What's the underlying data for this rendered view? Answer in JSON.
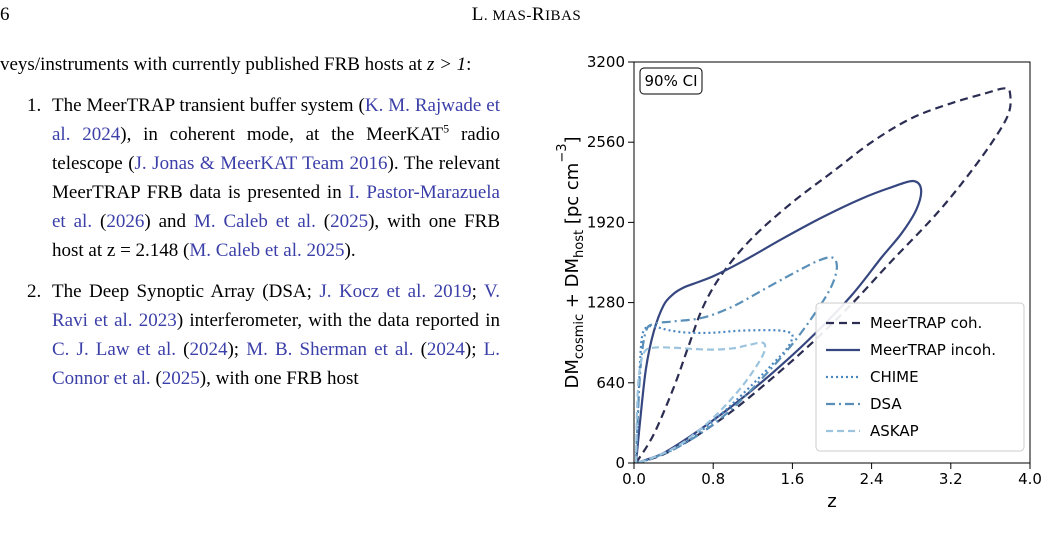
{
  "header": {
    "page_number": "6",
    "running_head_initial": "L",
    "running_head_small": "L. M",
    "running_head_rest": "AS-",
    "running_head_initial2": "R",
    "running_head_small2": "IBAS"
  },
  "text": {
    "intro": "veys/instruments with currently published FRB hosts at z > 1:",
    "items": [
      {
        "num": "1.",
        "parts": [
          {
            "t": "The MeerTRAP transient buffer system ("
          },
          {
            "t": "K. M. Rajwade et al. 2024",
            "cite": true
          },
          {
            "t": "), in coherent mode, at the MeerKAT"
          },
          {
            "t": "5",
            "sup": true
          },
          {
            "t": " radio telescope ("
          },
          {
            "t": "J. Jonas & MeerKAT Team 2016",
            "cite": true
          },
          {
            "t": "). The relevant MeerTRAP FRB data is presented in "
          },
          {
            "t": "I. Pastor-Marazuela et al.",
            "cite": true
          },
          {
            "t": " ("
          },
          {
            "t": "2026",
            "cite": true
          },
          {
            "t": ") and "
          },
          {
            "t": "M. Caleb et al.",
            "cite": true
          },
          {
            "t": " ("
          },
          {
            "t": "2025",
            "cite": true
          },
          {
            "t": "), with one FRB host at z = 2.148 ("
          },
          {
            "t": "M. Caleb et al. 2025",
            "cite": true
          },
          {
            "t": ")."
          }
        ]
      },
      {
        "num": "2.",
        "parts": [
          {
            "t": "The Deep Synoptic Array (DSA; "
          },
          {
            "t": "J. Kocz et al. 2019",
            "cite": true
          },
          {
            "t": "; "
          },
          {
            "t": "V. Ravi et al. 2023",
            "cite": true
          },
          {
            "t": ") interferometer, with the data reported in "
          },
          {
            "t": "C. J. Law et al.",
            "cite": true
          },
          {
            "t": " ("
          },
          {
            "t": "2024",
            "cite": true
          },
          {
            "t": "); "
          },
          {
            "t": "M. B. Sherman et al.",
            "cite": true
          },
          {
            "t": " ("
          },
          {
            "t": "2024",
            "cite": true
          },
          {
            "t": "); "
          },
          {
            "t": "L. Connor et al.",
            "cite": true
          },
          {
            "t": " ("
          },
          {
            "t": "2025",
            "cite": true
          },
          {
            "t": "), with one FRB host"
          }
        ]
      }
    ]
  },
  "chart_data": {
    "type": "line",
    "title": "",
    "annotation": "90% CI",
    "xlabel": "z",
    "ylabel_parts": [
      "DM",
      "cosmic",
      " + DM",
      "host",
      " [pc cm",
      "−3",
      "]"
    ],
    "xlim": [
      0.0,
      4.0
    ],
    "ylim": [
      0,
      3200
    ],
    "xticks": [
      "0.0",
      "0.8",
      "1.6",
      "2.4",
      "3.2",
      "4.0"
    ],
    "yticks": [
      "0",
      "640",
      "1280",
      "1920",
      "2560",
      "3200"
    ],
    "legend_position": "lower-right",
    "series": [
      {
        "name": "MeerTRAP coh.",
        "color": "#2b2d52",
        "dash": "8,5",
        "width": 2.2,
        "points": [
          [
            0.02,
            0
          ],
          [
            0.2,
            230
          ],
          [
            0.4,
            600
          ],
          [
            0.55,
            930
          ],
          [
            0.7,
            1250
          ],
          [
            0.9,
            1520
          ],
          [
            1.2,
            1800
          ],
          [
            1.6,
            2080
          ],
          [
            2.0,
            2320
          ],
          [
            2.4,
            2560
          ],
          [
            2.8,
            2750
          ],
          [
            3.2,
            2870
          ],
          [
            3.55,
            2950
          ],
          [
            3.75,
            2990
          ],
          [
            3.8,
            2940
          ],
          [
            3.78,
            2780
          ],
          [
            3.6,
            2540
          ],
          [
            3.3,
            2220
          ],
          [
            3.0,
            1940
          ],
          [
            2.6,
            1610
          ],
          [
            2.2,
            1270
          ],
          [
            1.8,
            960
          ],
          [
            1.4,
            680
          ],
          [
            1.0,
            420
          ],
          [
            0.6,
            200
          ],
          [
            0.3,
            70
          ],
          [
            0.1,
            15
          ],
          [
            0.02,
            0
          ]
        ]
      },
      {
        "name": "MeerTRAP incoh.",
        "color": "#36477f",
        "dash": "",
        "width": 2.2,
        "points": [
          [
            0.02,
            0
          ],
          [
            0.06,
            320
          ],
          [
            0.12,
            750
          ],
          [
            0.2,
            1050
          ],
          [
            0.3,
            1260
          ],
          [
            0.4,
            1350
          ],
          [
            0.5,
            1400
          ],
          [
            0.6,
            1430
          ],
          [
            0.8,
            1490
          ],
          [
            1.1,
            1610
          ],
          [
            1.5,
            1790
          ],
          [
            1.9,
            1960
          ],
          [
            2.3,
            2110
          ],
          [
            2.6,
            2200
          ],
          [
            2.82,
            2250
          ],
          [
            2.9,
            2180
          ],
          [
            2.85,
            2020
          ],
          [
            2.7,
            1830
          ],
          [
            2.5,
            1640
          ],
          [
            2.2,
            1340
          ],
          [
            1.8,
            1010
          ],
          [
            1.4,
            720
          ],
          [
            1.0,
            460
          ],
          [
            0.6,
            230
          ],
          [
            0.3,
            80
          ],
          [
            0.1,
            20
          ],
          [
            0.02,
            0
          ]
        ]
      },
      {
        "name": "CHIME",
        "color": "#4a86c2",
        "dash": "2,3",
        "width": 2.2,
        "points": [
          [
            0.02,
            0
          ],
          [
            0.04,
            400
          ],
          [
            0.06,
            780
          ],
          [
            0.08,
            1000
          ],
          [
            0.12,
            1080
          ],
          [
            0.2,
            1090
          ],
          [
            0.35,
            1060
          ],
          [
            0.55,
            1040
          ],
          [
            0.8,
            1040
          ],
          [
            1.05,
            1055
          ],
          [
            1.3,
            1060
          ],
          [
            1.5,
            1055
          ],
          [
            1.6,
            1020
          ],
          [
            1.55,
            920
          ],
          [
            1.4,
            790
          ],
          [
            1.2,
            630
          ],
          [
            0.95,
            440
          ],
          [
            0.7,
            270
          ],
          [
            0.45,
            130
          ],
          [
            0.2,
            40
          ],
          [
            0.02,
            0
          ]
        ]
      },
      {
        "name": "DSA",
        "color": "#5a8fb8",
        "dash": "9,4,2,4",
        "width": 2.2,
        "points": [
          [
            0.02,
            0
          ],
          [
            0.04,
            400
          ],
          [
            0.07,
            800
          ],
          [
            0.12,
            1050
          ],
          [
            0.2,
            1110
          ],
          [
            0.4,
            1130
          ],
          [
            0.7,
            1160
          ],
          [
            1.0,
            1250
          ],
          [
            1.3,
            1380
          ],
          [
            1.6,
            1510
          ],
          [
            1.85,
            1610
          ],
          [
            2.0,
            1640
          ],
          [
            2.05,
            1570
          ],
          [
            2.0,
            1420
          ],
          [
            1.85,
            1220
          ],
          [
            1.6,
            950
          ],
          [
            1.3,
            680
          ],
          [
            1.0,
            440
          ],
          [
            0.7,
            250
          ],
          [
            0.4,
            110
          ],
          [
            0.15,
            30
          ],
          [
            0.02,
            0
          ]
        ]
      },
      {
        "name": "ASKAP",
        "color": "#9cc4de",
        "dash": "7,4",
        "width": 2.2,
        "points": [
          [
            0.02,
            0
          ],
          [
            0.03,
            400
          ],
          [
            0.05,
            700
          ],
          [
            0.1,
            880
          ],
          [
            0.2,
            920
          ],
          [
            0.4,
            920
          ],
          [
            0.6,
            910
          ],
          [
            0.8,
            905
          ],
          [
            1.0,
            915
          ],
          [
            1.15,
            940
          ],
          [
            1.3,
            960
          ],
          [
            1.32,
            900
          ],
          [
            1.25,
            790
          ],
          [
            1.1,
            620
          ],
          [
            0.9,
            440
          ],
          [
            0.7,
            290
          ],
          [
            0.45,
            140
          ],
          [
            0.2,
            45
          ],
          [
            0.02,
            0
          ]
        ]
      }
    ]
  }
}
